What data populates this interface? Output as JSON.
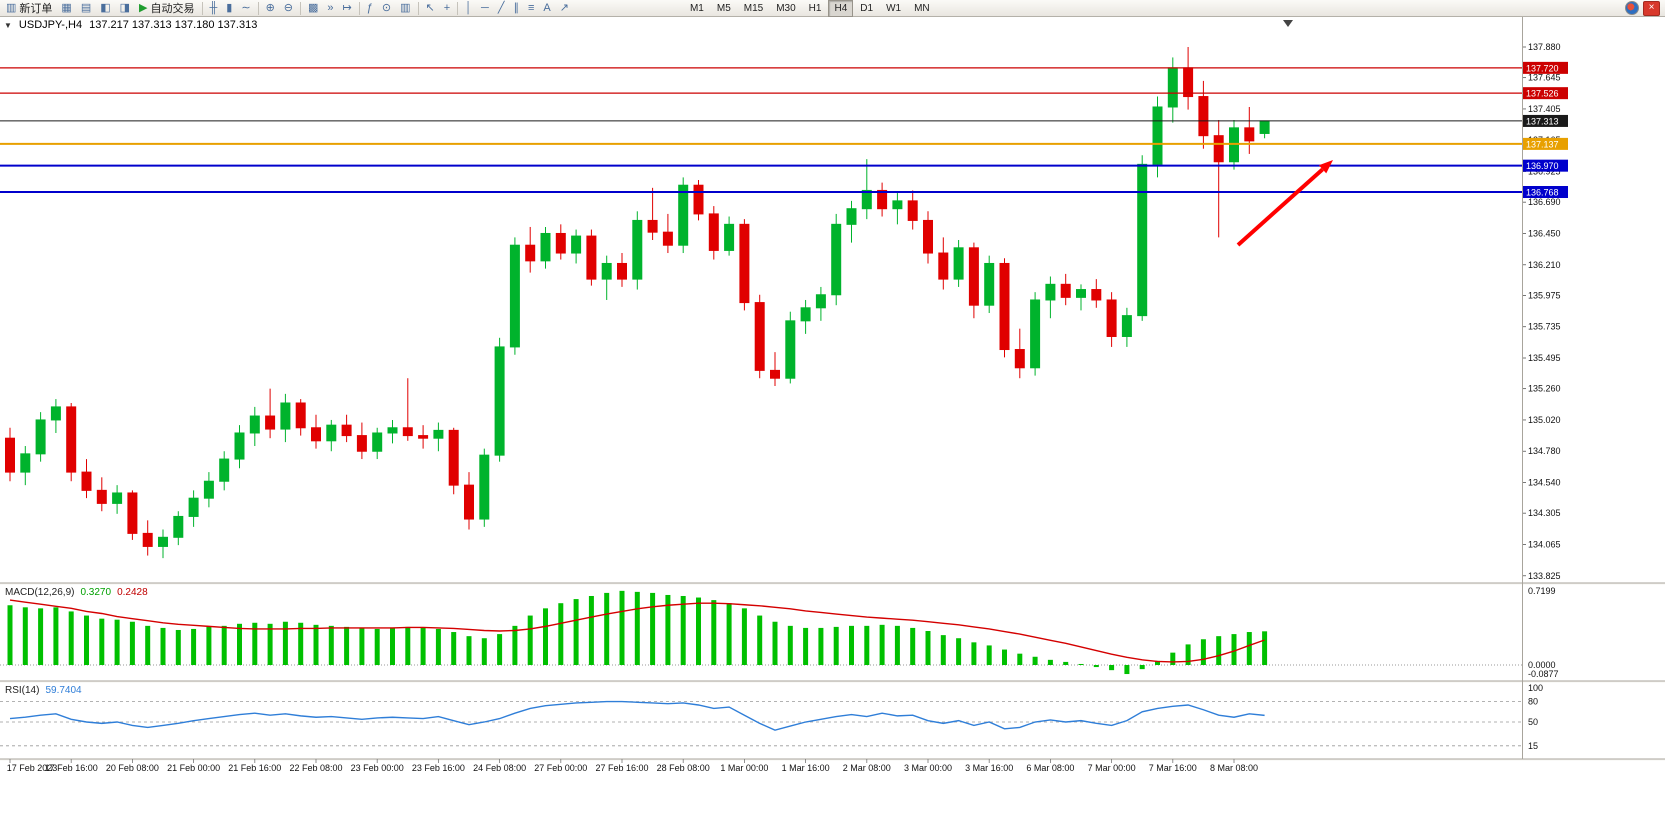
{
  "window": {
    "symbol_title": "USDJPY-,H4",
    "ohlc": "137.217 137.313 137.180 137.313",
    "collapse_glyph": "▼"
  },
  "toolbar": {
    "new_order": {
      "label": "新订单",
      "icon": "new-order-icon",
      "glyph": "▥"
    },
    "auto_trading": {
      "label": "自动交易",
      "icon": "auto-trading-icon",
      "glyph": "▶"
    },
    "icons_a": [
      {
        "name": "charts-grid-icon",
        "glyph": "▦"
      },
      {
        "name": "profiles-icon",
        "glyph": "▤"
      },
      {
        "name": "market-watch-icon",
        "glyph": "◧"
      },
      {
        "name": "navigator-icon",
        "glyph": "◨"
      }
    ],
    "icons_b": [
      {
        "name": "bar-chart-icon",
        "glyph": "╫"
      },
      {
        "name": "candlestick-chart-icon",
        "glyph": "▮"
      },
      {
        "name": "line-chart-icon",
        "glyph": "∼"
      }
    ],
    "icons_c": [
      {
        "name": "zoom-in-icon",
        "glyph": "⊕"
      },
      {
        "name": "zoom-out-icon",
        "glyph": "⊖"
      }
    ],
    "icons_d": [
      {
        "name": "tile-windows-icon",
        "glyph": "▩"
      },
      {
        "name": "auto-scroll-icon",
        "glyph": "»"
      },
      {
        "name": "chart-shift-icon",
        "glyph": "↦"
      }
    ],
    "icons_e": [
      {
        "name": "indicators-icon",
        "glyph": "ƒ"
      },
      {
        "name": "periods-icon",
        "glyph": "⊙"
      },
      {
        "name": "templates-icon",
        "glyph": "▥"
      }
    ],
    "icons_f": [
      {
        "name": "cursor-icon",
        "glyph": "↖"
      },
      {
        "name": "crosshair-icon",
        "glyph": "+"
      }
    ],
    "icons_g": [
      {
        "name": "vertical-line-icon",
        "glyph": "│"
      },
      {
        "name": "horizontal-line-icon",
        "glyph": "─"
      },
      {
        "name": "trendline-icon",
        "glyph": "╱"
      },
      {
        "name": "channel-icon",
        "glyph": "∥"
      },
      {
        "name": "fibonacci-icon",
        "glyph": "≡"
      },
      {
        "name": "text-icon",
        "glyph": "A"
      },
      {
        "name": "arrows-tool-icon",
        "glyph": "↗"
      }
    ],
    "timeframes": [
      "M1",
      "M5",
      "M15",
      "M30",
      "H1",
      "H4",
      "D1",
      "W1",
      "MN"
    ],
    "active_timeframe": "H4",
    "close_glyph": "×"
  },
  "colors": {
    "bull": "#00b32c",
    "bear": "#e00000",
    "macd_hist": "#00c000",
    "macd_signal": "#d40000",
    "rsi_line": "#2f7ed8",
    "arrow": "#ff0000"
  },
  "chart_data": {
    "type": "candlestick",
    "symbol": "USDJPY",
    "timeframe": "H4",
    "price_range": {
      "min": 133.825,
      "max": 137.88
    },
    "price_axis": {
      "ticks": [
        "137.880",
        "137.645",
        "137.405",
        "137.165",
        "136.925",
        "136.690",
        "136.450",
        "136.210",
        "135.975",
        "135.735",
        "135.495",
        "135.260",
        "135.020",
        "134.780",
        "134.540",
        "134.305",
        "134.065",
        "133.825"
      ]
    },
    "hlines": [
      {
        "price": 137.72,
        "label": "137.720",
        "color": "#cc0000",
        "width": 1.2
      },
      {
        "price": 137.526,
        "label": "137.526",
        "color": "#cc0000",
        "width": 1.2
      },
      {
        "price": 137.313,
        "label": "137.313",
        "color": "#1a1a1a",
        "width": 1
      },
      {
        "price": 137.137,
        "label": "137.137",
        "color": "#e8a000",
        "width": 2
      },
      {
        "price": 136.97,
        "label": "136.970",
        "color": "#0000cc",
        "width": 2
      },
      {
        "price": 136.768,
        "label": "136.768",
        "color": "#0000cc",
        "width": 2
      }
    ],
    "x_labels": [
      {
        "i": 0,
        "t": "17 Feb 2023"
      },
      {
        "i": 4,
        "t": "17 Feb 16:00"
      },
      {
        "i": 8,
        "t": "20 Feb 08:00"
      },
      {
        "i": 12,
        "t": "21 Feb 00:00"
      },
      {
        "i": 16,
        "t": "21 Feb 16:00"
      },
      {
        "i": 20,
        "t": "22 Feb 08:00"
      },
      {
        "i": 24,
        "t": "23 Feb 00:00"
      },
      {
        "i": 28,
        "t": "23 Feb 16:00"
      },
      {
        "i": 32,
        "t": "24 Feb 08:00"
      },
      {
        "i": 36,
        "t": "27 Feb 00:00"
      },
      {
        "i": 40,
        "t": "27 Feb 16:00"
      },
      {
        "i": 44,
        "t": "28 Feb 08:00"
      },
      {
        "i": 48,
        "t": "1 Mar 00:00"
      },
      {
        "i": 52,
        "t": "1 Mar 16:00"
      },
      {
        "i": 56,
        "t": "2 Mar 08:00"
      },
      {
        "i": 60,
        "t": "3 Mar 00:00"
      },
      {
        "i": 64,
        "t": "3 Mar 16:00"
      },
      {
        "i": 68,
        "t": "6 Mar 08:00"
      },
      {
        "i": 72,
        "t": "7 Mar 00:00"
      },
      {
        "i": 76,
        "t": "7 Mar 16:00"
      },
      {
        "i": 80,
        "t": "8 Mar 08:00"
      }
    ],
    "candles": [
      [
        134.88,
        134.96,
        134.55,
        134.62
      ],
      [
        134.62,
        134.82,
        134.52,
        134.76
      ],
      [
        134.76,
        135.08,
        134.7,
        135.02
      ],
      [
        135.02,
        135.18,
        134.92,
        135.12
      ],
      [
        135.12,
        135.15,
        134.55,
        134.62
      ],
      [
        134.62,
        134.72,
        134.42,
        134.48
      ],
      [
        134.48,
        134.58,
        134.32,
        134.38
      ],
      [
        134.38,
        134.52,
        134.3,
        134.46
      ],
      [
        134.46,
        134.48,
        134.1,
        134.15
      ],
      [
        134.15,
        134.25,
        133.98,
        134.05
      ],
      [
        134.05,
        134.18,
        133.96,
        134.12
      ],
      [
        134.12,
        134.32,
        134.06,
        134.28
      ],
      [
        134.28,
        134.48,
        134.2,
        134.42
      ],
      [
        134.42,
        134.62,
        134.35,
        134.55
      ],
      [
        134.55,
        134.78,
        134.48,
        134.72
      ],
      [
        134.72,
        134.98,
        134.65,
        134.92
      ],
      [
        134.92,
        135.12,
        134.82,
        135.05
      ],
      [
        135.05,
        135.26,
        134.88,
        134.95
      ],
      [
        134.95,
        135.22,
        134.85,
        135.15
      ],
      [
        135.15,
        135.18,
        134.9,
        134.96
      ],
      [
        134.96,
        135.06,
        134.8,
        134.86
      ],
      [
        134.86,
        135.02,
        134.78,
        134.98
      ],
      [
        134.98,
        135.06,
        134.85,
        134.9
      ],
      [
        134.9,
        135.0,
        134.72,
        134.78
      ],
      [
        134.78,
        134.96,
        134.72,
        134.92
      ],
      [
        134.92,
        135.02,
        134.84,
        134.96
      ],
      [
        134.96,
        135.34,
        134.86,
        134.9
      ],
      [
        134.9,
        134.98,
        134.8,
        134.88
      ],
      [
        134.88,
        135.0,
        134.78,
        134.94
      ],
      [
        134.94,
        134.96,
        134.45,
        134.52
      ],
      [
        134.52,
        134.62,
        134.18,
        134.26
      ],
      [
        134.26,
        134.8,
        134.2,
        134.75
      ],
      [
        134.75,
        135.65,
        134.7,
        135.58
      ],
      [
        135.58,
        136.42,
        135.52,
        136.36
      ],
      [
        136.36,
        136.5,
        136.15,
        136.24
      ],
      [
        136.24,
        136.5,
        136.18,
        136.45
      ],
      [
        136.45,
        136.52,
        136.25,
        136.3
      ],
      [
        136.3,
        136.48,
        136.22,
        136.43
      ],
      [
        136.43,
        136.48,
        136.05,
        136.1
      ],
      [
        136.1,
        136.28,
        135.94,
        136.22
      ],
      [
        136.22,
        136.3,
        136.04,
        136.1
      ],
      [
        136.1,
        136.62,
        136.02,
        136.55
      ],
      [
        136.55,
        136.8,
        136.4,
        136.46
      ],
      [
        136.46,
        136.6,
        136.3,
        136.36
      ],
      [
        136.36,
        136.88,
        136.3,
        136.82
      ],
      [
        136.82,
        136.86,
        136.55,
        136.6
      ],
      [
        136.6,
        136.66,
        136.25,
        136.32
      ],
      [
        136.32,
        136.58,
        136.28,
        136.52
      ],
      [
        136.52,
        136.56,
        135.86,
        135.92
      ],
      [
        135.92,
        135.98,
        135.34,
        135.4
      ],
      [
        135.4,
        135.54,
        135.28,
        135.34
      ],
      [
        135.34,
        135.85,
        135.3,
        135.78
      ],
      [
        135.78,
        135.94,
        135.68,
        135.88
      ],
      [
        135.88,
        136.04,
        135.78,
        135.98
      ],
      [
        135.98,
        136.6,
        135.9,
        136.52
      ],
      [
        136.52,
        136.7,
        136.38,
        136.64
      ],
      [
        136.64,
        137.02,
        136.56,
        136.78
      ],
      [
        136.78,
        136.84,
        136.58,
        136.64
      ],
      [
        136.64,
        136.76,
        136.52,
        136.7
      ],
      [
        136.7,
        136.78,
        136.48,
        136.55
      ],
      [
        136.55,
        136.62,
        136.22,
        136.3
      ],
      [
        136.3,
        136.42,
        136.02,
        136.1
      ],
      [
        136.1,
        136.4,
        136.04,
        136.34
      ],
      [
        136.34,
        136.38,
        135.8,
        135.9
      ],
      [
        135.9,
        136.28,
        135.84,
        136.22
      ],
      [
        136.22,
        136.26,
        135.5,
        135.56
      ],
      [
        135.56,
        135.72,
        135.34,
        135.42
      ],
      [
        135.42,
        136.0,
        135.36,
        135.94
      ],
      [
        135.94,
        136.12,
        135.8,
        136.06
      ],
      [
        136.06,
        136.14,
        135.9,
        135.96
      ],
      [
        135.96,
        136.06,
        135.86,
        136.02
      ],
      [
        136.02,
        136.1,
        135.88,
        135.94
      ],
      [
        135.94,
        136.0,
        135.58,
        135.66
      ],
      [
        135.66,
        135.88,
        135.58,
        135.82
      ],
      [
        135.82,
        137.05,
        135.78,
        136.98
      ],
      [
        136.98,
        137.5,
        136.88,
        137.42
      ],
      [
        137.42,
        137.8,
        137.3,
        137.72
      ],
      [
        137.72,
        137.88,
        137.4,
        137.5
      ],
      [
        137.5,
        137.62,
        137.1,
        137.2
      ],
      [
        137.2,
        137.32,
        136.42,
        137.0
      ],
      [
        137.0,
        137.32,
        136.94,
        137.26
      ],
      [
        137.26,
        137.42,
        137.06,
        137.16
      ],
      [
        137.217,
        137.313,
        137.18,
        137.313
      ]
    ],
    "indicators": {
      "macd": {
        "label": "MACD(12,26,9)",
        "main_value": "0.3270",
        "signal_value": "0.2428",
        "axis": [
          "0.7199",
          "0.0000",
          "-0.0877"
        ],
        "histogram": [
          0.58,
          0.56,
          0.55,
          0.56,
          0.52,
          0.48,
          0.45,
          0.44,
          0.42,
          0.38,
          0.36,
          0.34,
          0.35,
          0.37,
          0.38,
          0.4,
          0.41,
          0.4,
          0.42,
          0.41,
          0.39,
          0.38,
          0.37,
          0.36,
          0.35,
          0.36,
          0.37,
          0.36,
          0.35,
          0.32,
          0.28,
          0.26,
          0.3,
          0.38,
          0.48,
          0.55,
          0.6,
          0.64,
          0.67,
          0.7,
          0.7199,
          0.71,
          0.7,
          0.68,
          0.67,
          0.655,
          0.63,
          0.6,
          0.55,
          0.48,
          0.42,
          0.38,
          0.36,
          0.36,
          0.37,
          0.38,
          0.38,
          0.39,
          0.38,
          0.36,
          0.33,
          0.29,
          0.26,
          0.22,
          0.19,
          0.15,
          0.11,
          0.08,
          0.05,
          0.03,
          0.01,
          -0.02,
          -0.05,
          -0.0877,
          -0.04,
          0.04,
          0.12,
          0.2,
          0.25,
          0.28,
          0.3,
          0.32,
          0.327
        ],
        "signal": [
          0.63,
          0.61,
          0.59,
          0.57,
          0.55,
          0.52,
          0.5,
          0.47,
          0.45,
          0.43,
          0.41,
          0.395,
          0.385,
          0.375,
          0.365,
          0.355,
          0.35,
          0.35,
          0.35,
          0.355,
          0.355,
          0.36,
          0.36,
          0.36,
          0.36,
          0.36,
          0.365,
          0.365,
          0.36,
          0.355,
          0.345,
          0.335,
          0.33,
          0.335,
          0.35,
          0.375,
          0.405,
          0.435,
          0.465,
          0.495,
          0.52,
          0.545,
          0.565,
          0.58,
          0.59,
          0.6,
          0.6,
          0.595,
          0.585,
          0.575,
          0.56,
          0.545,
          0.525,
          0.51,
          0.495,
          0.48,
          0.465,
          0.455,
          0.445,
          0.435,
          0.42,
          0.405,
          0.39,
          0.37,
          0.35,
          0.325,
          0.3,
          0.27,
          0.24,
          0.21,
          0.175,
          0.14,
          0.105,
          0.075,
          0.05,
          0.035,
          0.03,
          0.035,
          0.055,
          0.09,
          0.135,
          0.19,
          0.2428
        ]
      },
      "rsi": {
        "label": "RSI(14)",
        "value": "59.7404",
        "axis": [
          "100",
          "80",
          "50",
          "15"
        ],
        "levels": [
          80,
          50,
          15
        ],
        "values": [
          55,
          57,
          60,
          62,
          54,
          50,
          48,
          50,
          45,
          42,
          45,
          48,
          52,
          55,
          58,
          61,
          63,
          60,
          62,
          59,
          57,
          58,
          56,
          54,
          56,
          57,
          56,
          55,
          58,
          52,
          46,
          50,
          55,
          63,
          70,
          74,
          76,
          78,
          79,
          80,
          80,
          79,
          78,
          77,
          78,
          75,
          70,
          72,
          60,
          48,
          38,
          44,
          50,
          54,
          58,
          61,
          58,
          63,
          59,
          60,
          52,
          48,
          52,
          45,
          50,
          40,
          42,
          50,
          53,
          50,
          52,
          48,
          45,
          52,
          65,
          70,
          73,
          75,
          68,
          60,
          57,
          62,
          59.7404
        ]
      }
    },
    "annotation_arrow": {
      "from": [
        1238,
        228
      ],
      "to": [
        1333,
        143
      ],
      "color": "#ff0000"
    }
  }
}
